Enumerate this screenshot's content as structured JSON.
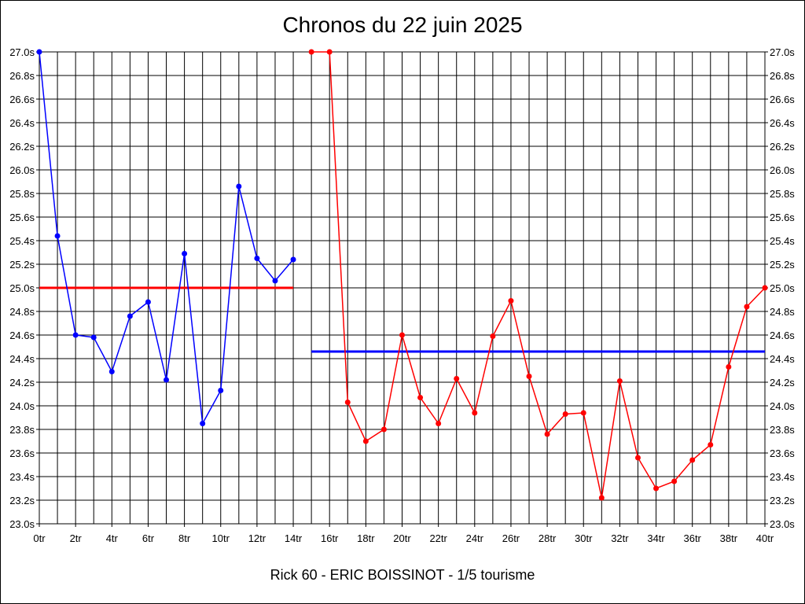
{
  "chart_data": {
    "type": "line",
    "title": "Chronos du 22 juin 2025",
    "subtitle": "Rick 60 - ERIC BOISSINOT - 1/5 tourisme",
    "ylim": [
      23.0,
      27.0
    ],
    "xlim": [
      0,
      40
    ],
    "y_ticks": [
      "23.0s",
      "23.2s",
      "23.4s",
      "23.6s",
      "23.8s",
      "24.0s",
      "24.2s",
      "24.4s",
      "24.6s",
      "24.8s",
      "25.0s",
      "25.2s",
      "25.4s",
      "25.6s",
      "25.8s",
      "26.0s",
      "26.2s",
      "26.4s",
      "26.6s",
      "26.8s",
      "27.0s"
    ],
    "x_ticks": [
      "0tr",
      "2tr",
      "4tr",
      "6tr",
      "8tr",
      "10tr",
      "12tr",
      "14tr",
      "16tr",
      "18tr",
      "20tr",
      "22tr",
      "24tr",
      "26tr",
      "28tr",
      "30tr",
      "32tr",
      "34tr",
      "36tr",
      "38tr",
      "40tr"
    ],
    "grid": true,
    "series": [
      {
        "color": "#0000ff",
        "x": [
          0,
          1,
          2,
          3,
          4,
          5,
          6,
          7,
          8,
          9,
          10,
          11,
          12,
          13,
          14
        ],
        "y": [
          27.0,
          25.44,
          24.6,
          24.58,
          24.29,
          24.76,
          24.88,
          24.22,
          25.29,
          23.85,
          24.13,
          25.86,
          25.25,
          25.06,
          25.24
        ]
      },
      {
        "color": "#ff0000",
        "x": [
          15,
          16,
          17,
          18,
          19,
          20,
          21,
          22,
          23,
          24,
          25,
          26,
          27,
          28,
          29,
          30,
          31,
          32,
          33,
          34,
          35,
          36,
          37,
          38,
          39,
          40
        ],
        "y": [
          27.0,
          27.0,
          24.03,
          23.7,
          23.8,
          24.6,
          24.07,
          23.85,
          24.23,
          23.94,
          24.59,
          24.89,
          24.25,
          23.76,
          23.93,
          23.94,
          23.22,
          24.21,
          23.56,
          23.3,
          23.36,
          23.54,
          23.67,
          24.33,
          24.84,
          25.0
        ]
      }
    ],
    "reference_lines": [
      {
        "color": "#ff0000",
        "y": 25.0,
        "x": [
          0,
          14
        ]
      },
      {
        "color": "#0000ff",
        "y": 24.46,
        "x": [
          15,
          40
        ]
      }
    ]
  }
}
